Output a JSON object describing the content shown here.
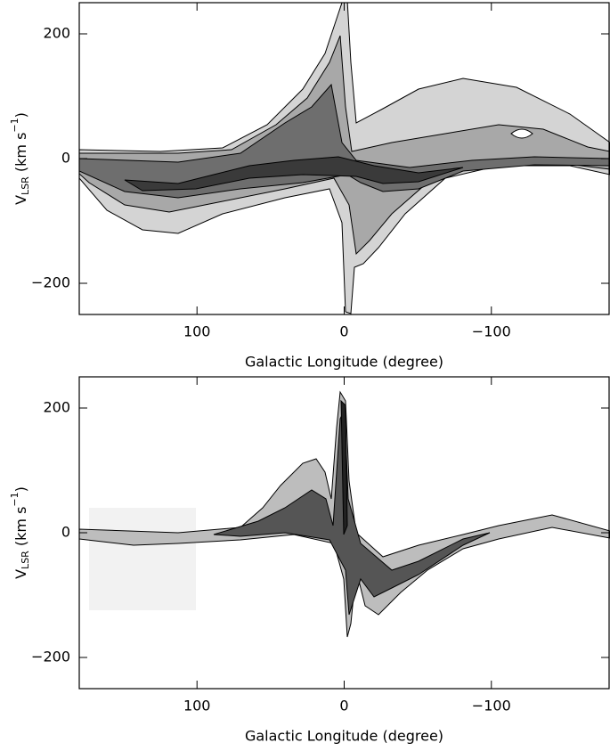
{
  "chart_data": [
    {
      "type": "contour",
      "xlabel": "Galactic Longitude (degree)",
      "ylabel": [
        "V",
        "LSR",
        " (km s",
        "−1",
        ")"
      ],
      "xlim": [
        180,
        -180
      ],
      "ylim": [
        -250,
        250
      ],
      "xticks": [
        100,
        0,
        {
          "value": -100,
          "label": "−100"
        }
      ],
      "yticks": [
        {
          "value": -200,
          "label": "−200"
        },
        0,
        200
      ]
    },
    {
      "type": "contour",
      "xlabel": "Galactic Longitude (degree)",
      "ylabel": [
        "V",
        "LSR",
        " (km s",
        "−1",
        ")"
      ],
      "xlim": [
        180,
        -180
      ],
      "ylim": [
        -250,
        250
      ],
      "xticks": [
        100,
        0,
        {
          "value": -100,
          "label": "−100"
        }
      ],
      "yticks": [
        {
          "value": -200,
          "label": "−200"
        },
        0,
        200
      ]
    }
  ]
}
